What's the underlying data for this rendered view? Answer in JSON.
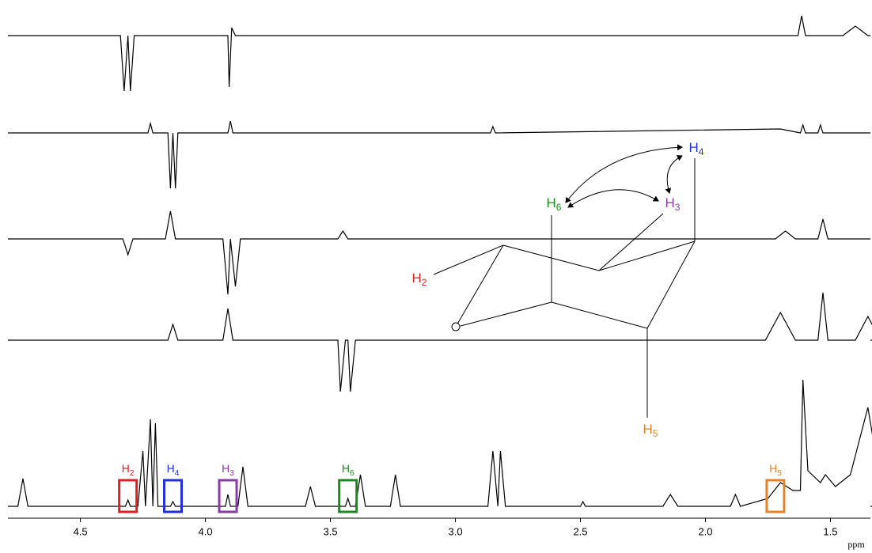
{
  "chart_data": {
    "type": "nmr",
    "xlim": [
      4.79,
      1.34
    ],
    "xticks": [
      4.5,
      {
        "value": 4,
        "label": "4.0"
      },
      3.5,
      {
        "value": 3,
        "label": "3.0"
      },
      2.5,
      {
        "value": 2,
        "label": "2.0"
      },
      1.5
    ],
    "x_label": "ppm",
    "series": [
      {
        "color": "#000000",
        "x": [
          4.79,
          4.34,
          4.325,
          4.31,
          4.3,
          4.285,
          4.22,
          3.91,
          3.905,
          3.895,
          3.88,
          1.63,
          1.615,
          1.6,
          1.45,
          1.4,
          1.35,
          1.34
        ],
        "values": [
          0,
          0,
          -70,
          0,
          -70,
          0,
          0,
          0,
          -65,
          10,
          0,
          0,
          25,
          0,
          0,
          12,
          0,
          0
        ]
      },
      {
        "color": "#000000",
        "x": [
          4.79,
          4.23,
          4.22,
          4.21,
          4.15,
          4.14,
          4.13,
          4.12,
          4.11,
          3.91,
          3.9,
          3.89,
          2.86,
          2.85,
          2.84,
          1.7,
          1.62,
          1.61,
          1.6,
          1.55,
          1.54,
          1.53,
          1.34
        ],
        "values": [
          0,
          0,
          12,
          0,
          0,
          -70,
          0,
          -70,
          0,
          0,
          15,
          0,
          0,
          8,
          0,
          5,
          0,
          10,
          0,
          0,
          10,
          0,
          0
        ]
      },
      {
        "color": "#000000",
        "x": [
          4.79,
          4.33,
          4.31,
          4.29,
          4.16,
          4.14,
          4.12,
          3.93,
          3.91,
          3.9,
          3.88,
          3.86,
          3.47,
          3.45,
          3.43,
          1.72,
          1.68,
          1.64,
          1.55,
          1.53,
          1.51,
          1.34
        ],
        "values": [
          0,
          0,
          -20,
          0,
          0,
          35,
          0,
          0,
          -70,
          0,
          -60,
          0,
          0,
          10,
          0,
          0,
          10,
          0,
          0,
          25,
          0,
          0
        ]
      },
      {
        "color": "#000000",
        "x": [
          4.79,
          4.15,
          4.13,
          4.11,
          3.93,
          3.91,
          3.89,
          3.47,
          3.46,
          3.44,
          3.43,
          3.42,
          3.4,
          1.76,
          1.7,
          1.64,
          1.55,
          1.53,
          1.51,
          1.4,
          1.35,
          1.3,
          1.34
        ],
        "values": [
          0,
          0,
          20,
          0,
          0,
          40,
          0,
          0,
          -65,
          0,
          0,
          -65,
          0,
          0,
          35,
          0,
          0,
          60,
          0,
          0,
          30,
          0,
          0
        ]
      },
      {
        "color": "#000000",
        "x": [
          4.79,
          4.75,
          4.73,
          4.71,
          4.32,
          4.31,
          4.3,
          4.27,
          4.25,
          4.24,
          4.22,
          4.21,
          4.2,
          4.19,
          4.14,
          4.13,
          4.12,
          3.92,
          3.91,
          3.9,
          3.87,
          3.85,
          3.83,
          3.6,
          3.58,
          3.56,
          3.44,
          3.43,
          3.42,
          3.4,
          3.38,
          3.36,
          3.26,
          3.24,
          3.22,
          2.87,
          2.85,
          2.83,
          2.82,
          2.8,
          2.5,
          2.49,
          2.48,
          2.17,
          2.14,
          2.11,
          1.9,
          1.88,
          1.86,
          1.75,
          1.7,
          1.65,
          1.62,
          1.61,
          1.59,
          1.54,
          1.52,
          1.48,
          1.42,
          1.35,
          1.3,
          1.29,
          1.28,
          1.27,
          1.34
        ],
        "values": [
          0,
          0,
          35,
          0,
          0,
          8,
          0,
          0,
          70,
          0,
          110,
          0,
          105,
          0,
          0,
          6,
          0,
          0,
          15,
          0,
          0,
          50,
          0,
          0,
          25,
          0,
          0,
          10,
          0,
          0,
          40,
          0,
          0,
          40,
          0,
          0,
          70,
          0,
          70,
          0,
          0,
          6,
          0,
          0,
          15,
          0,
          0,
          15,
          0,
          10,
          30,
          20,
          20,
          160,
          45,
          30,
          40,
          25,
          40,
          125,
          30,
          30,
          100,
          0,
          0
        ]
      }
    ],
    "annotations": [
      {
        "text": "H",
        "sub": "2",
        "x": 4.31,
        "color": "#e02020"
      },
      {
        "text": "H",
        "sub": "4",
        "x": 4.13,
        "color": "#2030d8"
      },
      {
        "text": "H",
        "sub": "3",
        "x": 3.91,
        "color": "#8a3aa8"
      },
      {
        "text": "H",
        "sub": "6",
        "x": 3.43,
        "color": "#1e8a1e"
      },
      {
        "text": "H",
        "sub": "5",
        "x": 1.72,
        "color": "#e8822a"
      }
    ]
  },
  "structure": {
    "labels": [
      {
        "text": "H",
        "sub": "4",
        "color": "#2030d8"
      },
      {
        "text": "H",
        "sub": "6",
        "color": "#1e8a1e"
      },
      {
        "text": "H",
        "sub": "3",
        "color": "#8a3aa8"
      },
      {
        "text": "H",
        "sub": "2",
        "color": "#e02020"
      },
      {
        "text": "H",
        "sub": "5",
        "color": "#e8822a"
      }
    ]
  }
}
